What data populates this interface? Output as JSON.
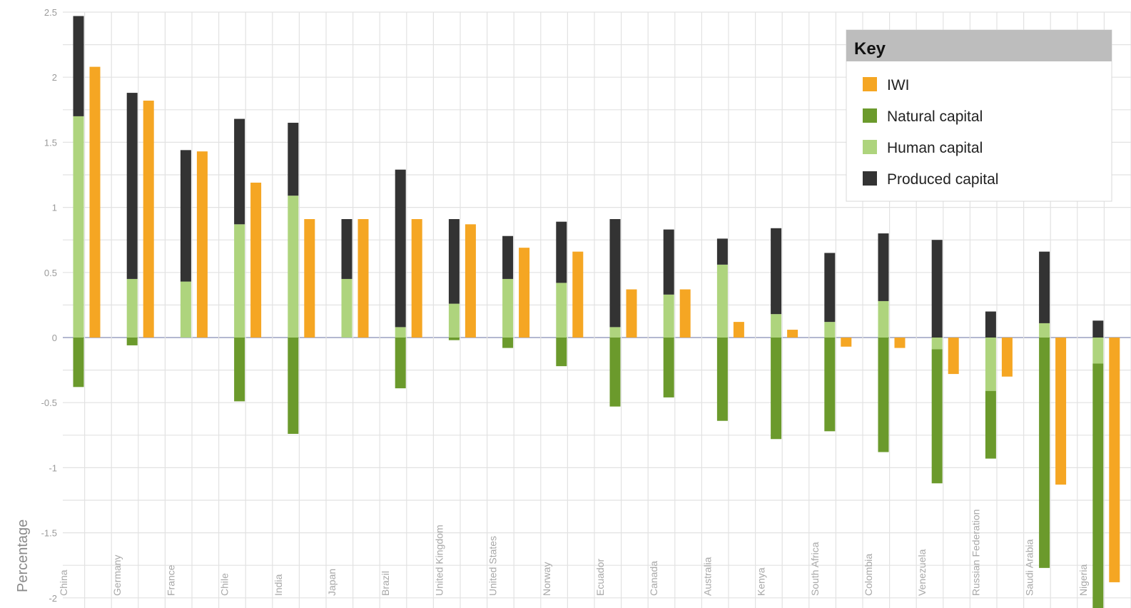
{
  "chart_data": {
    "type": "bar",
    "ylabel": "Percentage",
    "ylim": [
      -2,
      2.5
    ],
    "yticks": [
      "2.5",
      "2",
      "1.5",
      "1",
      "0.5",
      "0",
      "-0.5",
      "-1",
      "-1.5",
      "-2"
    ],
    "ytick_values": [
      2.5,
      2,
      1.5,
      1,
      0.5,
      0,
      -0.5,
      -1,
      -1.5,
      -2
    ],
    "grid": true,
    "legend_placement": "top-right",
    "legend_title": "Key",
    "categories": [
      "China",
      "Germany",
      "France",
      "Chile",
      "India",
      "Japan",
      "Brazil",
      "United Kingdom",
      "United States",
      "Norway",
      "Ecuador",
      "Canada",
      "Australia",
      "Kenya",
      "South Africa",
      "Colombia",
      "Venezuela",
      "Russian Federation",
      "Saudi Arabia",
      "Nigeria"
    ],
    "series": [
      {
        "name": "IWI",
        "color": "#f5a623",
        "values": [
          2.08,
          1.82,
          1.43,
          1.19,
          0.91,
          0.91,
          0.91,
          0.87,
          0.69,
          0.66,
          0.37,
          0.37,
          0.12,
          0.06,
          -0.07,
          -0.08,
          -0.28,
          -0.3,
          -1.13,
          -1.88
        ]
      },
      {
        "name": "Natural capital",
        "color": "#6b9a2c",
        "values": [
          -0.38,
          -0.06,
          0.0,
          -0.49,
          -0.74,
          0.0,
          -0.39,
          -0.02,
          -0.08,
          -0.22,
          -0.53,
          -0.46,
          -0.64,
          -0.78,
          -0.72,
          -0.88,
          -1.03,
          -0.52,
          -1.77,
          -2.0
        ]
      },
      {
        "name": "Human capital",
        "color": "#aed47d",
        "values": [
          1.7,
          0.45,
          0.43,
          0.87,
          1.09,
          0.45,
          0.08,
          0.26,
          0.45,
          0.42,
          0.08,
          0.33,
          0.56,
          0.18,
          0.12,
          0.28,
          -0.09,
          -0.41,
          0.11,
          -0.2
        ]
      },
      {
        "name": "Produced capital",
        "color": "#333333",
        "values": [
          0.77,
          1.43,
          1.01,
          0.81,
          0.56,
          0.46,
          1.21,
          0.65,
          0.33,
          0.47,
          0.83,
          0.5,
          0.2,
          0.66,
          0.53,
          0.52,
          0.75,
          0.2,
          0.55,
          0.13
        ]
      }
    ]
  }
}
